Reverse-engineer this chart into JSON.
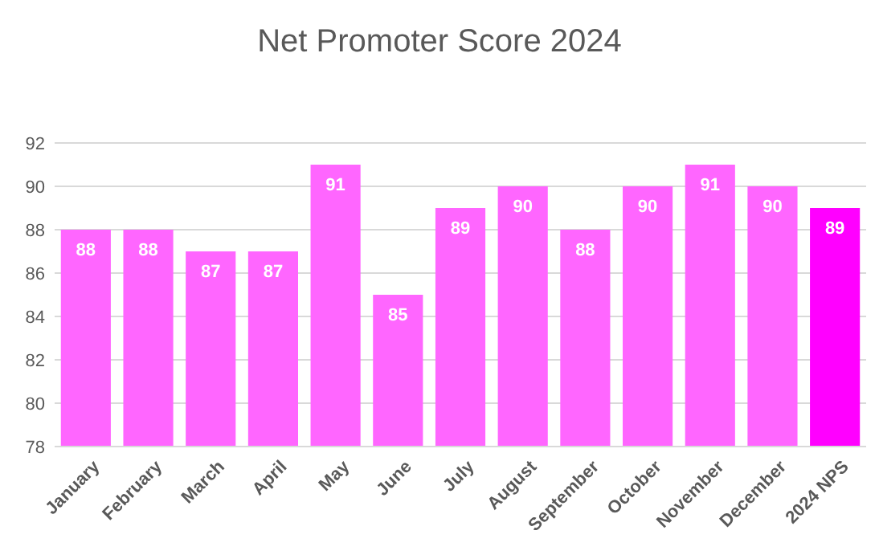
{
  "chart_data": {
    "type": "bar",
    "title": "Net Promoter Score 2024",
    "categories": [
      "January",
      "February",
      "March",
      "April",
      "May",
      "June",
      "July",
      "August",
      "September",
      "October",
      "November",
      "December",
      "2024 NPS"
    ],
    "values": [
      88,
      88,
      87,
      87,
      91,
      85,
      89,
      90,
      88,
      90,
      91,
      90,
      89
    ],
    "colors": [
      "#ff66ff",
      "#ff66ff",
      "#ff66ff",
      "#ff66ff",
      "#ff66ff",
      "#ff66ff",
      "#ff66ff",
      "#ff66ff",
      "#ff66ff",
      "#ff66ff",
      "#ff66ff",
      "#ff66ff",
      "#ff00ff"
    ],
    "ylim": [
      78,
      92
    ],
    "yticks": [
      78,
      80,
      82,
      84,
      86,
      88,
      90,
      92
    ],
    "grid": "y",
    "data_labels": true
  }
}
